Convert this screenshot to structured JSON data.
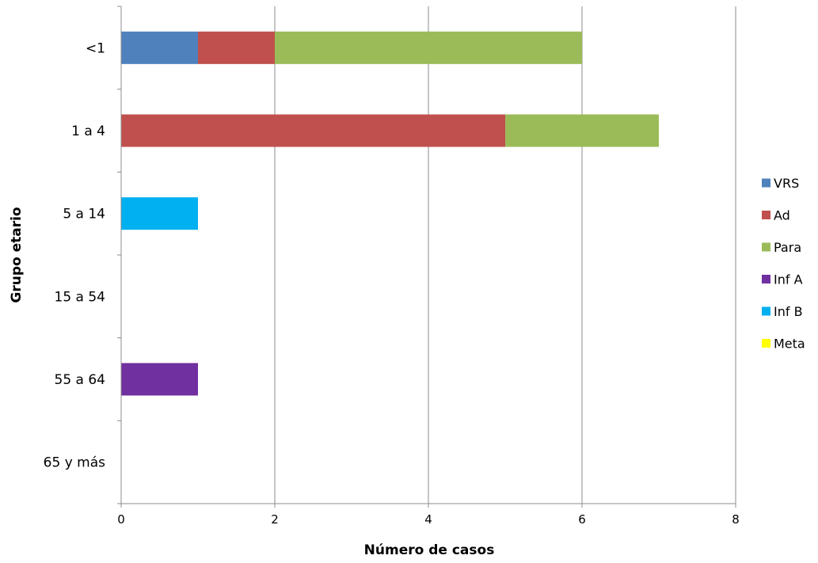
{
  "chart_data": {
    "type": "bar",
    "orientation": "horizontal",
    "stacked": true,
    "categories": [
      "<1",
      "1 a 4",
      "5 a 14",
      "15 a 54",
      "55 a 64",
      "65 y más"
    ],
    "series": [
      {
        "name": "VRS",
        "color": "#4F81BD",
        "values": [
          1,
          0,
          0,
          0,
          0,
          0
        ]
      },
      {
        "name": "Ad",
        "color": "#C0504D",
        "values": [
          1,
          5,
          0,
          0,
          0,
          0
        ]
      },
      {
        "name": "Para",
        "color": "#9BBB59",
        "values": [
          4,
          2,
          0,
          0,
          0,
          0
        ]
      },
      {
        "name": "Inf A",
        "color": "#7030A0",
        "values": [
          0,
          0,
          0,
          0,
          1,
          0
        ]
      },
      {
        "name": "Inf B",
        "color": "#00B0F0",
        "values": [
          0,
          0,
          1,
          0,
          0,
          0
        ]
      },
      {
        "name": "Meta",
        "color": "#FFFF00",
        "values": [
          0,
          0,
          0,
          0,
          0,
          0
        ]
      }
    ],
    "xlabel": "Número de casos",
    "ylabel": "Grupo etario",
    "xlim": [
      0,
      8
    ],
    "xticks": [
      0,
      2,
      4,
      6,
      8
    ],
    "xtick_labels": [
      "0",
      "2",
      "4",
      "6",
      "8"
    ],
    "grid": "vertical",
    "legend_position": "right"
  }
}
